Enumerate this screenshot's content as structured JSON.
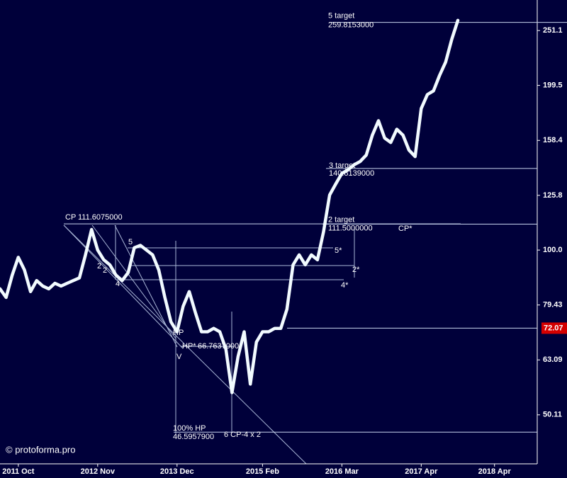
{
  "chart_data": {
    "type": "line",
    "y_scale": "log",
    "color": "#f2fbff",
    "xlim": [
      "2011-07",
      "2018-11"
    ],
    "xticks": [
      {
        "value": "2011-10",
        "label": "2011 Oct"
      },
      {
        "value": "2012-11",
        "label": "2012 Nov"
      },
      {
        "value": "2013-12",
        "label": "2013 Dec"
      },
      {
        "value": "2015-02",
        "label": "2015 Feb"
      },
      {
        "value": "2016-03",
        "label": "2016 Mar"
      },
      {
        "value": "2017-04",
        "label": "2017 Apr"
      },
      {
        "value": "2018-04",
        "label": "2018 Apr"
      }
    ],
    "ylim": [
      40.8,
      285.4
    ],
    "yticks": [
      251.1,
      199.5,
      158.4,
      125.8,
      {
        "value": 100,
        "label": "100.0"
      },
      79.43,
      63.09,
      50.11
    ],
    "x": [
      "2011-07",
      "2011-08",
      "2011-09",
      "2011-10",
      "2011-11",
      "2011-12",
      "2012-01",
      "2012-02",
      "2012-03",
      "2012-04",
      "2012-05",
      "2012-06",
      "2012-07",
      "2012-08",
      "2012-09",
      "2012-10",
      "2012-11",
      "2012-12",
      "2013-01",
      "2013-02",
      "2013-03",
      "2013-04",
      "2013-05",
      "2013-06",
      "2013-07",
      "2013-08",
      "2013-09",
      "2013-10",
      "2013-11",
      "2013-12",
      "2014-01",
      "2014-02",
      "2014-03",
      "2014-04",
      "2014-05",
      "2014-06",
      "2014-07",
      "2014-08",
      "2014-09",
      "2014-10",
      "2014-11",
      "2014-12",
      "2015-01",
      "2015-02",
      "2015-03",
      "2015-04",
      "2015-05",
      "2015-06",
      "2015-07",
      "2015-08",
      "2015-09",
      "2015-10",
      "2015-11",
      "2015-12",
      "2016-01",
      "2016-02",
      "2016-03",
      "2016-04",
      "2016-05",
      "2016-06",
      "2016-07",
      "2016-08",
      "2016-09",
      "2016-10",
      "2016-11",
      "2016-12",
      "2017-01",
      "2017-02",
      "2017-03",
      "2017-04",
      "2017-05",
      "2017-06",
      "2017-07",
      "2017-08",
      "2017-09",
      "2017-10"
    ],
    "values": [
      85,
      82,
      90,
      97,
      92,
      84,
      88,
      86,
      85,
      87,
      86,
      87,
      88,
      89,
      98,
      109,
      100,
      96,
      94,
      90,
      88,
      91,
      101,
      102,
      100,
      98,
      92,
      82,
      74,
      71,
      79,
      84,
      77,
      71,
      71,
      72,
      71,
      66,
      55,
      64,
      71,
      57,
      68,
      71,
      71,
      72,
      72,
      78,
      94,
      98,
      94,
      98,
      96,
      108,
      126,
      132,
      138,
      140,
      143,
      145,
      149,
      162,
      172,
      160,
      157,
      166,
      162,
      152,
      148,
      181,
      192,
      195,
      208,
      220,
      242,
      262
    ],
    "levels": [
      {
        "name": "5 target",
        "value": 259.8153,
        "label": "259.8153000"
      },
      {
        "name": "3 target",
        "value": 140.8139,
        "label": "140.8139000"
      },
      {
        "name": "2 target",
        "value": 111.5,
        "label": "111.5000000"
      },
      {
        "name": "CP",
        "value": 111.6075,
        "label": "111.6075000"
      },
      {
        "name": "100% HP",
        "value": 46.5958,
        "label": "46.5957900"
      },
      {
        "name": "HP*",
        "value": 66.7637,
        "label": "66.7637000"
      }
    ],
    "price_marker": {
      "value": 72.07,
      "color": "#d40000"
    },
    "marks": [
      "CP*",
      "5*",
      "2*",
      "4*",
      "HP",
      "V",
      "6 CP-4 x 2",
      "2",
      "2",
      "4",
      "5"
    ],
    "watermark": "© protoforma.pro"
  }
}
